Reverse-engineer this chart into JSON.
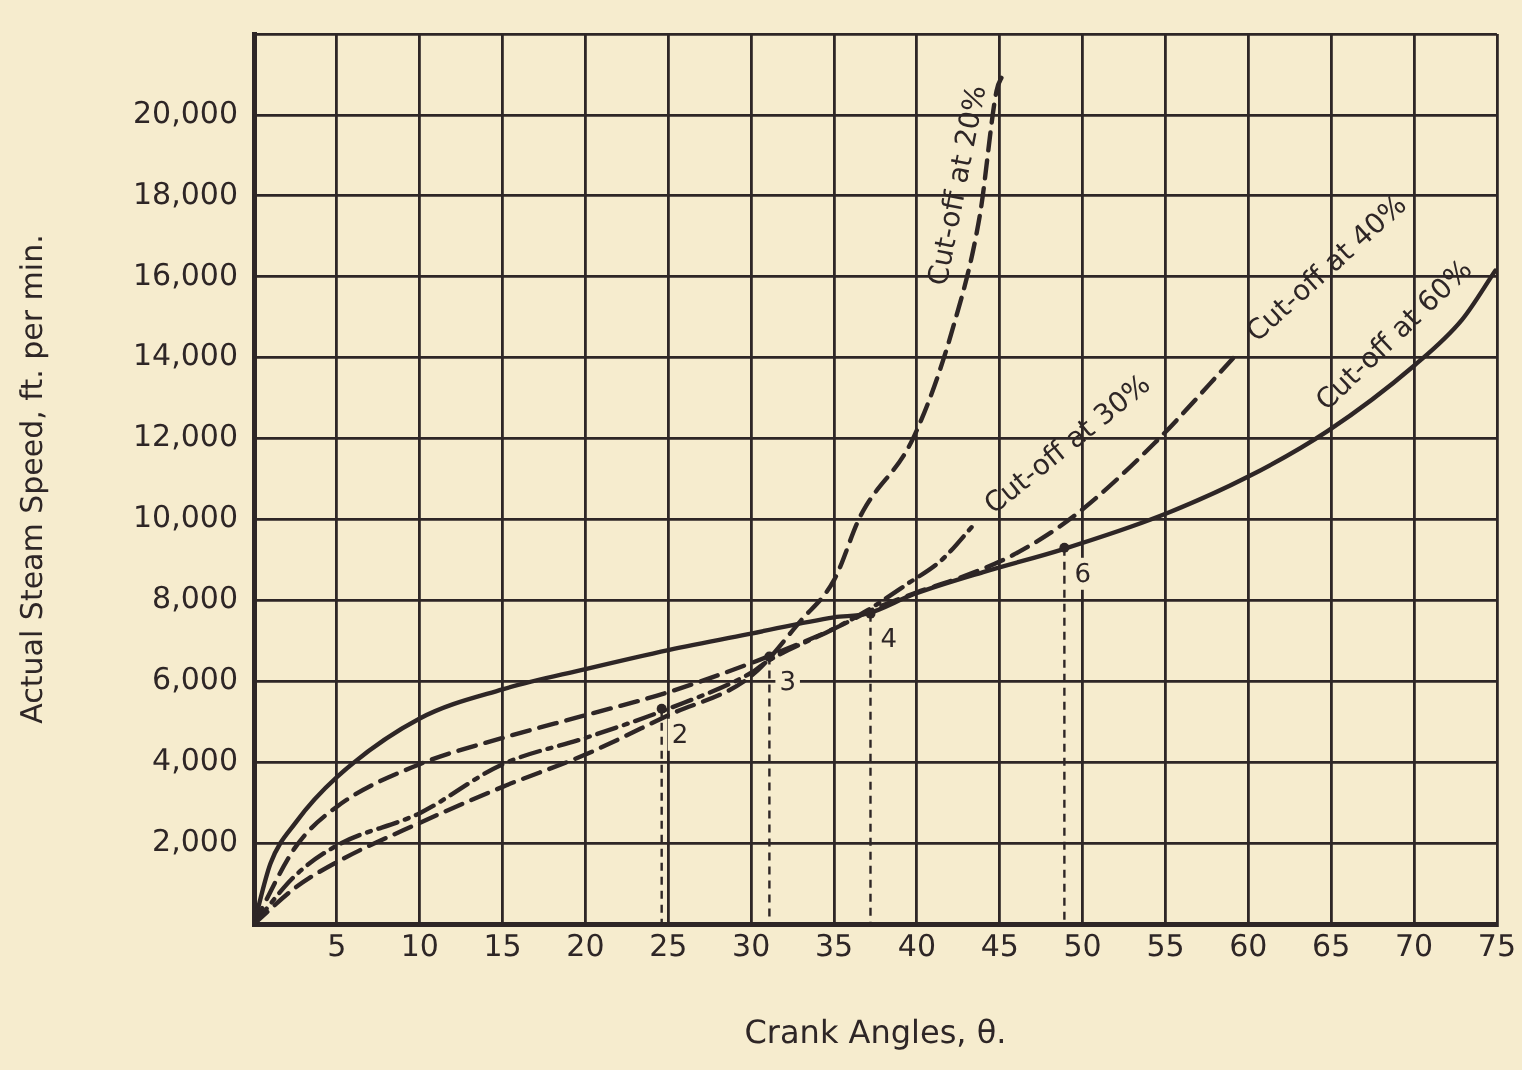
{
  "chart_data": {
    "type": "line",
    "xlabel": "Crank Angles, θ.",
    "ylabel": "Actual Steam Speed, ft. per min.",
    "xlim": [
      0,
      75
    ],
    "ylim": [
      0,
      22000
    ],
    "xticks": [
      5,
      10,
      15,
      20,
      25,
      30,
      35,
      40,
      45,
      50,
      55,
      60,
      65,
      70,
      75
    ],
    "yticks": [
      {
        "value": 2000,
        "label": "2,000"
      },
      {
        "value": 4000,
        "label": "4,000"
      },
      {
        "value": 6000,
        "label": "6,000"
      },
      {
        "value": 8000,
        "label": "8,000"
      },
      {
        "value": 10000,
        "label": "10,000"
      },
      {
        "value": 12000,
        "label": "12,000"
      },
      {
        "value": 14000,
        "label": "14,000"
      },
      {
        "value": 16000,
        "label": "16,000"
      },
      {
        "value": 18000,
        "label": "18,000"
      },
      {
        "value": 20000,
        "label": "20,000"
      },
      {
        "value": 22000,
        "label": null
      }
    ],
    "grid": true,
    "legend": false,
    "marker": "none",
    "series": [
      {
        "name": "Cut-off at 20%",
        "color": "#2e2626",
        "line_style": "dashed",
        "x": [
          0,
          2.5,
          5,
          10,
          15,
          20,
          25,
          30,
          33,
          35,
          36.6,
          39.8,
          42.2,
          43.8,
          44.8,
          45.2
        ],
        "values": [
          0,
          900,
          1530,
          2500,
          3390,
          4190,
          5160,
          6130,
          7500,
          8500,
          10090,
          12030,
          14770,
          17520,
          20580,
          21000
        ]
      },
      {
        "name": "Cut-off at 30%",
        "color": "#2e2626",
        "line_style": "dashdot",
        "x": [
          0,
          2.5,
          5,
          10,
          15,
          20,
          25,
          30,
          31,
          35,
          37,
          39.4,
          41.5,
          43.5
        ],
        "values": [
          0,
          1200,
          1940,
          2740,
          3950,
          4600,
          5320,
          6210,
          6500,
          7300,
          7750,
          8400,
          9000,
          9900
        ]
      },
      {
        "name": "Cut-off at 40%",
        "color": "#2e2626",
        "line_style": "dashed",
        "x": [
          0,
          2.5,
          5,
          10,
          15,
          20,
          25,
          30,
          31,
          35,
          37.5,
          40,
          42.6,
          45.8,
          49.5,
          54.3,
          59.4
        ],
        "values": [
          0,
          1900,
          2900,
          3950,
          4600,
          5160,
          5730,
          6450,
          6610,
          7300,
          7800,
          8200,
          8560,
          9120,
          10090,
          11870,
          14130
        ]
      },
      {
        "name": "Cut-off at 60%",
        "color": "#2e2626",
        "line_style": "solid",
        "x": [
          0,
          1,
          2.5,
          5,
          10,
          15,
          20,
          25,
          30,
          35,
          37,
          39.8,
          44,
          48.7,
          54.7,
          60,
          64.8,
          70,
          72.9,
          74.9
        ],
        "values": [
          0,
          1500,
          2500,
          3630,
          5080,
          5800,
          6300,
          6770,
          7180,
          7580,
          7670,
          8150,
          8700,
          9250,
          10090,
          11060,
          12190,
          13800,
          14940,
          16150
        ]
      }
    ],
    "annotations": [
      {
        "text": "2",
        "x": 24.6,
        "y": 5320
      },
      {
        "text": "3",
        "x": 31.1,
        "y": 6610
      },
      {
        "text": "4",
        "x": 37.2,
        "y": 7670
      },
      {
        "text": "6",
        "x": 48.9,
        "y": 9300
      }
    ]
  }
}
